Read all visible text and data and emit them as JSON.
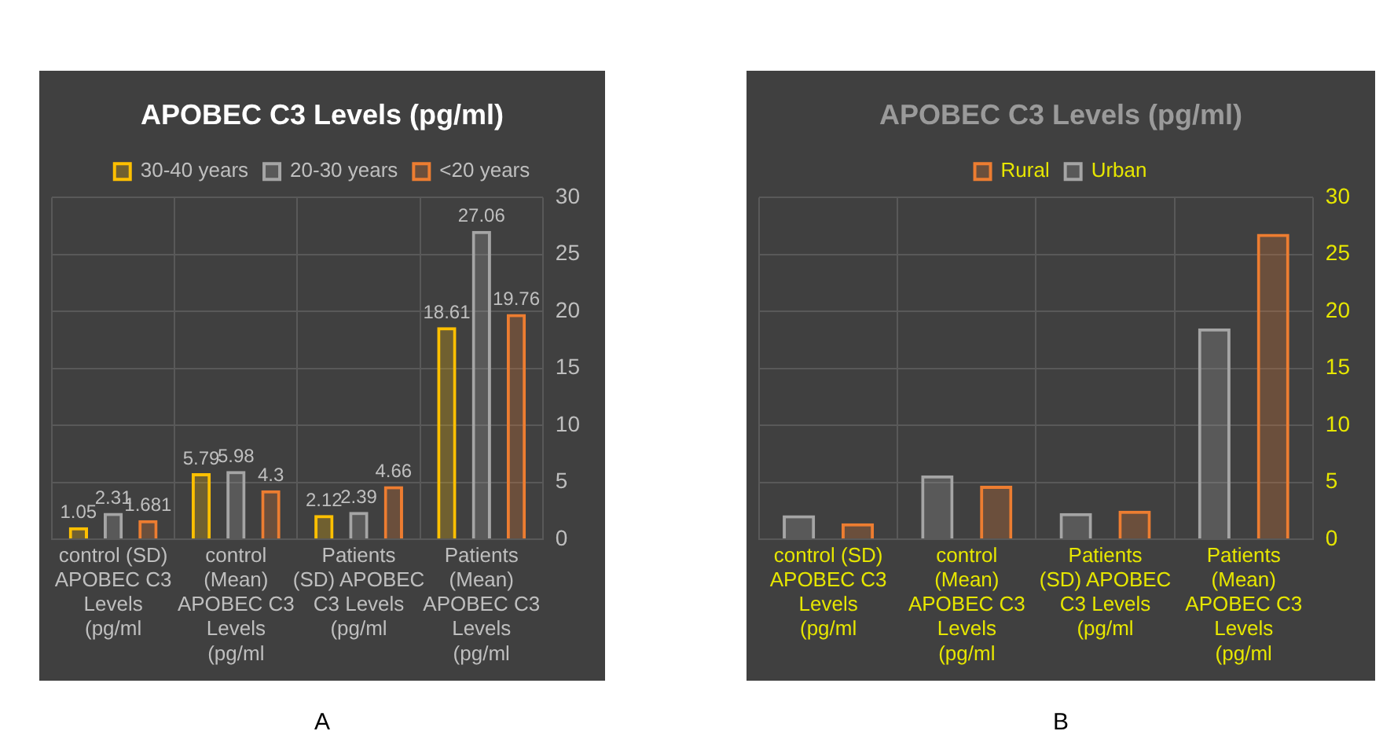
{
  "chart_data": [
    {
      "type": "bar",
      "title": "APOBEC C3 Levels (pg/ml)",
      "categories": [
        "control (SD) APOBEC C3 Levels (pg/ml",
        "control (Mean) APOBEC C3 Levels (pg/ml",
        "Patients (SD) APOBEC C3 Levels (pg/ml",
        "Patients (Mean) APOBEC C3 Levels (pg/ml"
      ],
      "series": [
        {
          "name": "30-40 years",
          "color": "#ffc000",
          "values": [
            1.05,
            5.79,
            2.12,
            18.61
          ]
        },
        {
          "name": "20-30 years",
          "color": "#a5a5a5",
          "values": [
            2.31,
            5.98,
            2.39,
            27.06
          ]
        },
        {
          "name": "<20 years",
          "color": "#ed7d31",
          "values": [
            1.681,
            4.3,
            4.66,
            19.76
          ]
        }
      ],
      "ylim": [
        0,
        30
      ],
      "yticks": [
        0,
        5,
        10,
        15,
        20,
        25,
        30
      ],
      "grid": true,
      "legend": "top",
      "data_labels": true,
      "annotations": [
        "A"
      ]
    },
    {
      "type": "bar",
      "title": "APOBEC C3 Levels (pg/ml)",
      "categories": [
        "control (SD) APOBEC C3 Levels (pg/ml",
        "control (Mean) APOBEC C3 Levels (pg/ml",
        "Patients (SD) APOBEC C3 Levels (pg/ml",
        "Patients (Mean) APOBEC C3 Levels (pg/ml"
      ],
      "series": [
        {
          "name": "Urban",
          "color": "#a5a5a5",
          "values": [
            2.1,
            5.6,
            2.3,
            18.5
          ]
        },
        {
          "name": "Rural",
          "color": "#ed7d31",
          "values": [
            1.4,
            4.7,
            2.5,
            26.8
          ]
        }
      ],
      "ylim": [
        0,
        30
      ],
      "yticks": [
        0,
        5,
        10,
        15,
        20,
        25,
        30
      ],
      "grid": true,
      "legend": "top",
      "annotations": [
        "B"
      ]
    }
  ]
}
